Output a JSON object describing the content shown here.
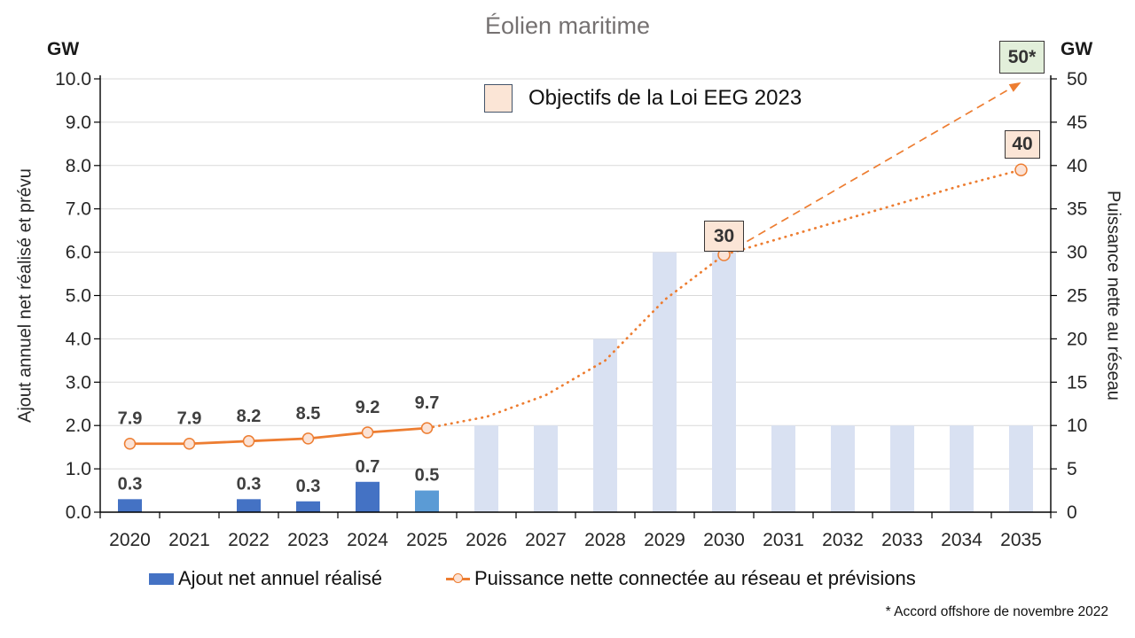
{
  "title": "Éolien maritime",
  "left_axis": {
    "unit": "GW",
    "label": "Ajout annuel net réalisé et prévu"
  },
  "right_axis": {
    "unit": "GW",
    "label": "Puissance nette au réseau"
  },
  "legend_top": {
    "label": "Objectifs de la Loi EEG 2023"
  },
  "legend_bottom": {
    "bar_label": "Ajout net annuel réalisé",
    "line_label": "Puissance nette connectée au réseau et prévisions"
  },
  "annotations": {
    "t2030": "30",
    "t2035": "40",
    "t2035_eeg": "50*"
  },
  "footnote": "* Accord offshore de novembre 2022",
  "colors": {
    "bar_realized": "#4472C4",
    "bar_partial": "#5B9BD5",
    "bar_forecast": "#D9E1F2",
    "line": "#ED7D31",
    "marker_fill": "#FBE2D5",
    "objective_box_bg": "#FBE5D6",
    "objective_50_box_bg": "#E2EFDA",
    "box_border": "#3B3838",
    "grid": "#D9D9D9",
    "axis": "#000000",
    "title": "#757171",
    "data_label": "#3F3F3F",
    "tick_label": "#262626"
  },
  "chart_data": {
    "type": "combo",
    "title": "Éolien maritime",
    "categories": [
      "2020",
      "2021",
      "2022",
      "2023",
      "2024",
      "2025",
      "2026",
      "2027",
      "2028",
      "2029",
      "2030",
      "2031",
      "2032",
      "2033",
      "2034",
      "2035"
    ],
    "left_axis_range": [
      0,
      10
    ],
    "right_axis_range": [
      0,
      50
    ],
    "left_tick_labels": [
      "10.0",
      "9.0",
      "8.0",
      "7.0",
      "6.0",
      "5.0",
      "4.0",
      "3.0",
      "2.0",
      "1.0",
      "0.0"
    ],
    "right_tick_labels": [
      "50",
      "45",
      "40",
      "35",
      "30",
      "25",
      "20",
      "15",
      "10",
      "5",
      "0"
    ],
    "grid": true,
    "legend_position": "bottom",
    "series": [
      {
        "name": "Ajout net annuel réalisé",
        "type": "bar",
        "axis": "left",
        "values": [
          0.3,
          0,
          0.3,
          0.25,
          0.7,
          0.5,
          2.0,
          2.0,
          4.0,
          6.0,
          6.0,
          2.0,
          2.0,
          2.0,
          2.0,
          2.0
        ],
        "data_labels": [
          "0.3",
          "",
          "0.3",
          "0.3",
          "0.7",
          "0.5",
          "",
          "",
          "",
          "",
          "",
          "",
          "",
          "",
          "",
          ""
        ],
        "bar_kind": [
          "realized",
          "none",
          "realized",
          "realized",
          "realized",
          "partial",
          "forecast",
          "forecast",
          "forecast",
          "forecast",
          "forecast",
          "forecast",
          "forecast",
          "forecast",
          "forecast",
          "forecast"
        ]
      },
      {
        "name": "Puissance nette connectée au réseau et prévisions",
        "type": "line",
        "axis": "right",
        "actual_x": [
          "2020",
          "2021",
          "2022",
          "2023",
          "2024",
          "2025"
        ],
        "actual_y": [
          7.9,
          7.9,
          8.2,
          8.5,
          9.2,
          9.7
        ],
        "actual_labels": [
          "7.9",
          "7.9",
          "8.2",
          "8.5",
          "9.2",
          "9.7"
        ],
        "forecast_x": [
          "2025",
          "2026",
          "2027",
          "2028",
          "2029",
          "2030",
          "2031",
          "2032",
          "2033",
          "2034",
          "2035"
        ],
        "forecast_y": [
          9.7,
          11.0,
          13.5,
          17.5,
          24.5,
          29.7,
          31.7,
          33.7,
          35.7,
          37.7,
          39.5
        ],
        "forecast_marker_points": [
          [
            "2030",
            29.7
          ],
          [
            "2035",
            39.5
          ]
        ],
        "annotation_2030": "30",
        "annotation_2035": "40"
      },
      {
        "name": "Objectifs de la Loi EEG 2023",
        "type": "dashed-line",
        "axis": "right",
        "points": [
          [
            "2030",
            29.7
          ],
          [
            "2035",
            49.6
          ]
        ],
        "arrow_end": true,
        "annotation_2035": "50*"
      }
    ]
  }
}
